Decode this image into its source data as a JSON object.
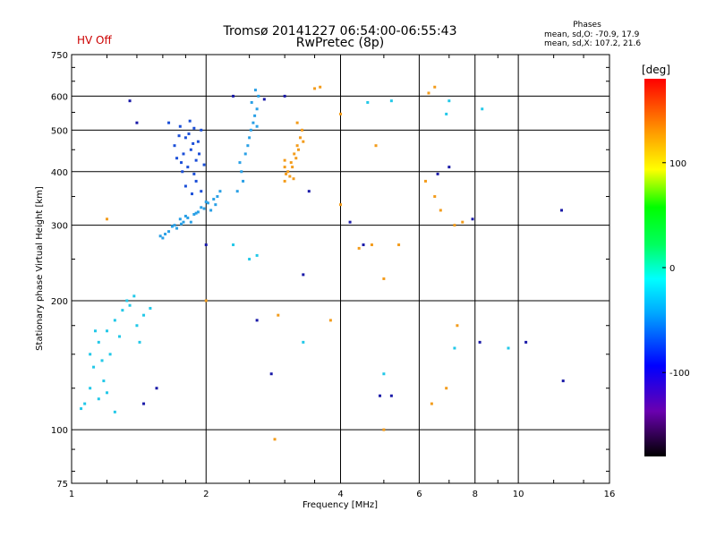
{
  "header": {
    "title_line1": "Tromsø 20141227 06:54:00-06:55:43",
    "title_line2": "RwPretec (8p)",
    "hv_status": "HV Off",
    "phase_title": "Phases",
    "phase_o": "mean, sd,O: -70.9, 17.9",
    "phase_x": "mean, sd,X: 107.2, 21.6"
  },
  "colors": {
    "hv_status": "#cc0000",
    "orange": "#f39c1c",
    "cyan": "#22c8e8",
    "blue": "#1b4fd8",
    "darkblue": "#1a1aa8"
  },
  "chart_data": {
    "type": "scatter",
    "xlabel": "Frequency [MHz]",
    "ylabel": "Stationary phase Virtual Height [km]",
    "xscale": "log",
    "yscale": "log",
    "xlim": [
      1,
      16
    ],
    "ylim": [
      75,
      750
    ],
    "xticks": [
      1,
      2,
      4,
      6,
      8,
      10,
      16
    ],
    "yticks": [
      75,
      100,
      200,
      300,
      400,
      500,
      600,
      750
    ],
    "grid": true,
    "colorbar": {
      "label": "[deg]",
      "ticks": [
        100,
        0,
        -100
      ],
      "range": [
        -180,
        180
      ]
    },
    "series": [
      {
        "color": "#1b4fd8",
        "points": [
          [
            1.75,
            510
          ],
          [
            1.8,
            480
          ],
          [
            1.85,
            450
          ],
          [
            1.9,
            425
          ],
          [
            1.82,
            410
          ],
          [
            1.88,
            395
          ],
          [
            1.92,
            470
          ],
          [
            1.78,
            440
          ],
          [
            1.95,
            500
          ],
          [
            1.7,
            460
          ],
          [
            1.84,
            525
          ],
          [
            1.9,
            380
          ],
          [
            1.86,
            355
          ],
          [
            1.76,
            420
          ],
          [
            1.98,
            415
          ],
          [
            1.83,
            490
          ],
          [
            1.77,
            400
          ],
          [
            1.65,
            520
          ],
          [
            1.95,
            360
          ],
          [
            1.72,
            430
          ],
          [
            1.88,
            505
          ],
          [
            1.8,
            370
          ],
          [
            1.93,
            440
          ],
          [
            1.74,
            485
          ],
          [
            1.87,
            465
          ]
        ]
      },
      {
        "color": "#2aa0e6",
        "points": [
          [
            1.6,
            280
          ],
          [
            1.65,
            290
          ],
          [
            1.7,
            300
          ],
          [
            1.75,
            310
          ],
          [
            1.8,
            315
          ],
          [
            1.85,
            305
          ],
          [
            1.9,
            320
          ],
          [
            1.95,
            330
          ],
          [
            2.0,
            340
          ],
          [
            2.05,
            325
          ],
          [
            2.1,
            335
          ],
          [
            1.72,
            295
          ],
          [
            1.78,
            305
          ],
          [
            1.88,
            318
          ],
          [
            1.98,
            328
          ],
          [
            2.08,
            345
          ],
          [
            1.62,
            286
          ],
          [
            1.68,
            298
          ],
          [
            1.82,
            312
          ],
          [
            1.92,
            322
          ],
          [
            2.02,
            338
          ],
          [
            2.12,
            350
          ],
          [
            1.58,
            283
          ],
          [
            1.76,
            302
          ],
          [
            2.15,
            360
          ],
          [
            2.35,
            360
          ],
          [
            2.4,
            400
          ],
          [
            2.45,
            440
          ],
          [
            2.5,
            480
          ],
          [
            2.55,
            520
          ],
          [
            2.6,
            560
          ],
          [
            2.62,
            600
          ],
          [
            2.58,
            620
          ],
          [
            2.48,
            460
          ],
          [
            2.42,
            380
          ],
          [
            2.52,
            500
          ],
          [
            2.57,
            540
          ],
          [
            2.38,
            420
          ],
          [
            2.53,
            580
          ],
          [
            2.6,
            510
          ]
        ]
      },
      {
        "color": "#22c8e8",
        "points": [
          [
            1.07,
            115
          ],
          [
            1.1,
            125
          ],
          [
            1.12,
            140
          ],
          [
            1.15,
            160
          ],
          [
            1.2,
            170
          ],
          [
            1.25,
            180
          ],
          [
            1.3,
            190
          ],
          [
            1.35,
            195
          ],
          [
            1.05,
            112
          ],
          [
            1.18,
            130
          ],
          [
            1.22,
            150
          ],
          [
            1.28,
            165
          ],
          [
            1.4,
            175
          ],
          [
            1.45,
            185
          ],
          [
            1.5,
            192
          ],
          [
            1.15,
            118
          ],
          [
            1.2,
            122
          ],
          [
            1.25,
            110
          ],
          [
            1.33,
            200
          ],
          [
            1.1,
            150
          ],
          [
            1.13,
            170
          ],
          [
            1.38,
            205
          ],
          [
            1.42,
            160
          ],
          [
            1.17,
            145
          ],
          [
            2.5,
            250
          ],
          [
            2.6,
            255
          ],
          [
            2.3,
            270
          ],
          [
            3.3,
            160
          ],
          [
            5.0,
            135
          ],
          [
            7.2,
            155
          ],
          [
            9.5,
            155
          ],
          [
            4.6,
            580
          ],
          [
            5.2,
            585
          ],
          [
            6.9,
            545
          ],
          [
            7.0,
            585
          ],
          [
            8.3,
            560
          ]
        ]
      },
      {
        "color": "#f39c1c",
        "points": [
          [
            3.0,
            380
          ],
          [
            3.05,
            400
          ],
          [
            3.1,
            420
          ],
          [
            3.15,
            440
          ],
          [
            3.2,
            460
          ],
          [
            3.25,
            480
          ],
          [
            3.08,
            390
          ],
          [
            3.12,
            410
          ],
          [
            3.18,
            430
          ],
          [
            3.22,
            450
          ],
          [
            3.3,
            470
          ],
          [
            3.02,
            395
          ],
          [
            3.14,
            385
          ],
          [
            3.28,
            500
          ],
          [
            3.0,
            410
          ],
          [
            3.2,
            520
          ],
          [
            3.6,
            630
          ],
          [
            4.0,
            545
          ],
          [
            4.8,
            460
          ],
          [
            6.2,
            380
          ],
          [
            6.5,
            350
          ],
          [
            6.7,
            325
          ],
          [
            7.2,
            300
          ],
          [
            7.5,
            305
          ],
          [
            6.3,
            610
          ],
          [
            6.5,
            630
          ],
          [
            5.0,
            225
          ],
          [
            5.4,
            270
          ],
          [
            4.4,
            265
          ],
          [
            4.0,
            335
          ],
          [
            2.9,
            185
          ],
          [
            2.85,
            95
          ],
          [
            3.0,
            425
          ],
          [
            2.0,
            200
          ],
          [
            1.2,
            310
          ],
          [
            5.0,
            100
          ],
          [
            6.4,
            115
          ],
          [
            6.9,
            125
          ],
          [
            7.3,
            175
          ],
          [
            3.8,
            180
          ],
          [
            3.5,
            625
          ],
          [
            4.7,
            270
          ]
        ]
      },
      {
        "color": "#1a1aa8",
        "points": [
          [
            1.35,
            585
          ],
          [
            1.4,
            520
          ],
          [
            2.3,
            600
          ],
          [
            2.7,
            590
          ],
          [
            3.0,
            600
          ],
          [
            2.8,
            135
          ],
          [
            3.3,
            230
          ],
          [
            3.4,
            360
          ],
          [
            4.2,
            305
          ],
          [
            4.5,
            270
          ],
          [
            4.9,
            120
          ],
          [
            5.2,
            120
          ],
          [
            7.9,
            310
          ],
          [
            10.4,
            160
          ],
          [
            12.5,
            325
          ],
          [
            12.6,
            130
          ],
          [
            8.2,
            160
          ],
          [
            6.6,
            395
          ],
          [
            7.0,
            410
          ],
          [
            1.55,
            125
          ],
          [
            1.45,
            115
          ],
          [
            2.0,
            270
          ],
          [
            2.6,
            180
          ]
        ]
      }
    ]
  }
}
